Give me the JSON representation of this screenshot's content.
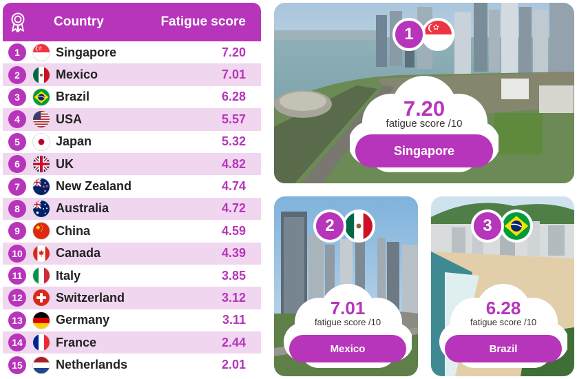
{
  "table": {
    "header": {
      "country_label": "Country",
      "score_label": "Fatigue score",
      "icon": "award-ribbon-icon"
    },
    "rows": [
      {
        "rank": "1",
        "country": "Singapore",
        "score": "7.20",
        "flag": "sg"
      },
      {
        "rank": "2",
        "country": "Mexico",
        "score": "7.01",
        "flag": "mx"
      },
      {
        "rank": "3",
        "country": "Brazil",
        "score": "6.28",
        "flag": "br"
      },
      {
        "rank": "4",
        "country": "USA",
        "score": "5.57",
        "flag": "us"
      },
      {
        "rank": "5",
        "country": "Japan",
        "score": "5.32",
        "flag": "jp"
      },
      {
        "rank": "6",
        "country": "UK",
        "score": "4.82",
        "flag": "uk"
      },
      {
        "rank": "7",
        "country": "New Zealand",
        "score": "4.74",
        "flag": "nz"
      },
      {
        "rank": "8",
        "country": "Australia",
        "score": "4.72",
        "flag": "au"
      },
      {
        "rank": "9",
        "country": "China",
        "score": "4.59",
        "flag": "cn"
      },
      {
        "rank": "10",
        "country": "Canada",
        "score": "4.39",
        "flag": "ca"
      },
      {
        "rank": "11",
        "country": "Italy",
        "score": "3.85",
        "flag": "it"
      },
      {
        "rank": "12",
        "country": "Switzerland",
        "score": "3.12",
        "flag": "ch"
      },
      {
        "rank": "13",
        "country": "Germany",
        "score": "3.11",
        "flag": "de"
      },
      {
        "rank": "14",
        "country": "France",
        "score": "2.44",
        "flag": "fr"
      },
      {
        "rank": "15",
        "country": "Netherlands",
        "score": "2.01",
        "flag": "nl"
      }
    ]
  },
  "cards": [
    {
      "rank": "1",
      "country": "Singapore",
      "score": "7.20",
      "sub": "fatigue score /10",
      "flag": "sg"
    },
    {
      "rank": "2",
      "country": "Mexico",
      "score": "7.01",
      "sub": "fatigue score /10",
      "flag": "mx"
    },
    {
      "rank": "3",
      "country": "Brazil",
      "score": "6.28",
      "sub": "fatigue score /10",
      "flag": "br"
    }
  ],
  "colors": {
    "accent": "#b735ba",
    "row_alt": "#f1d6f0"
  }
}
